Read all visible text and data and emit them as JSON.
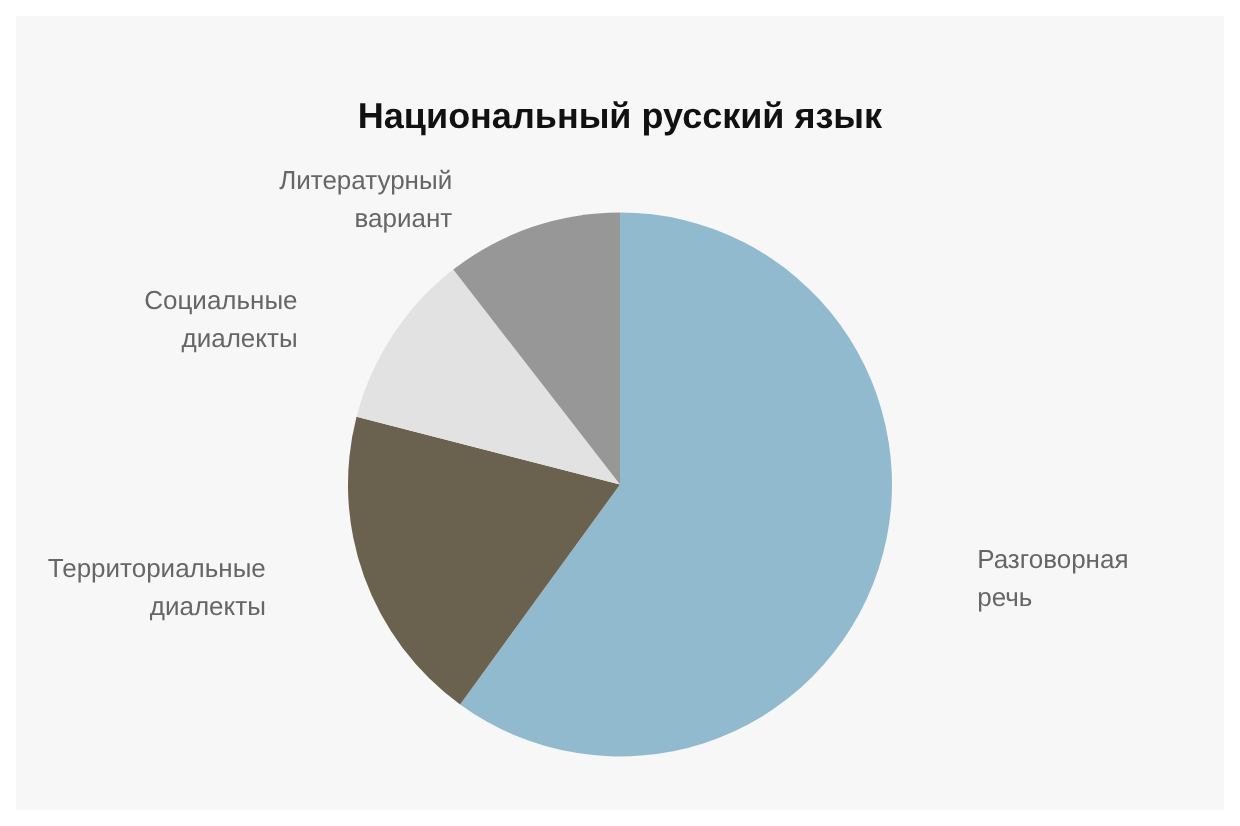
{
  "chart_data": {
    "type": "pie",
    "title": "Национальный русский язык",
    "categories": [
      "Разговорная речь",
      "Территориальные диалекты",
      "Социальные диалекты",
      "Литературный вариант"
    ],
    "values": [
      60,
      19,
      10.5,
      10.5
    ],
    "colors": [
      "#92bace",
      "#6a624f",
      "#e2e2e2",
      "#979797"
    ],
    "legend": false
  }
}
